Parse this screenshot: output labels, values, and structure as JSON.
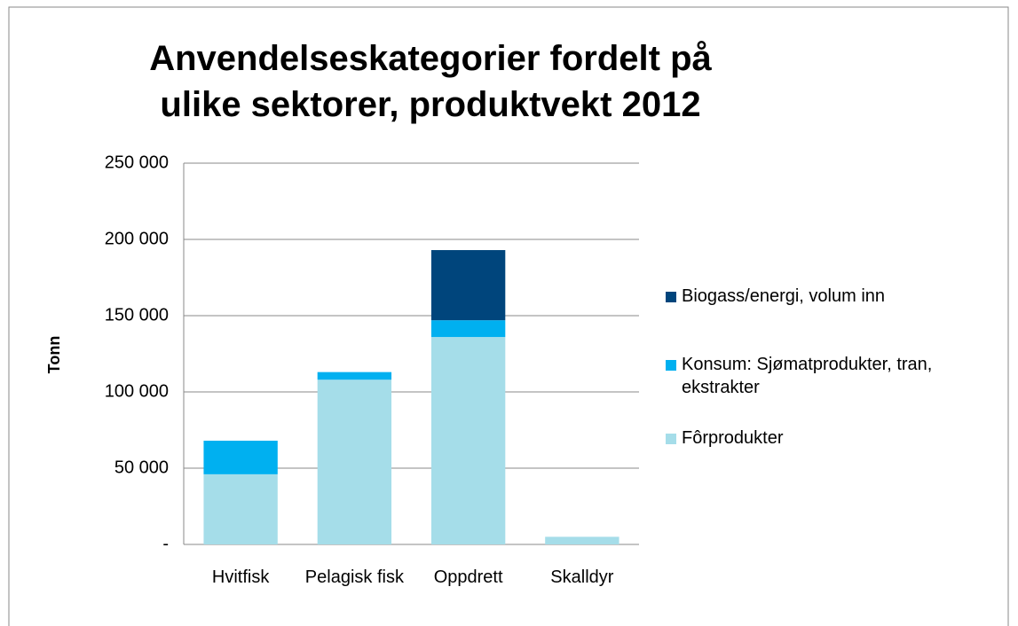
{
  "chart_data": {
    "type": "stacked_bar",
    "title": "Anvendelseskategorier fordelt på ulike sektorer, produktvekt 2012",
    "y_label": "Tonn",
    "categories": [
      "Hvitfisk",
      "Pelagisk fisk",
      "Oppdrett",
      "Skalldyr"
    ],
    "series": [
      {
        "name": "Fôrprodukter",
        "color": "#a5dde9",
        "values": [
          46000,
          108000,
          136000,
          5000
        ]
      },
      {
        "name": "Konsum: Sjømatprodukter, tran, ekstrakter",
        "color": "#00b0f0",
        "values": [
          22000,
          5000,
          11000,
          0
        ]
      },
      {
        "name": "Biogass/energi, volum inn",
        "color": "#00457c",
        "values": [
          0,
          0,
          46000,
          0
        ]
      }
    ],
    "ylim": [
      0,
      250000
    ],
    "yticks": [
      {
        "value": 0,
        "label": "-"
      },
      {
        "value": 50000,
        "label": "50 000"
      },
      {
        "value": 100000,
        "label": "100 000"
      },
      {
        "value": 150000,
        "label": "150 000"
      },
      {
        "value": 200000,
        "label": "200 000"
      },
      {
        "value": 250000,
        "label": "250 000"
      }
    ],
    "grid": true,
    "legend": "right"
  }
}
